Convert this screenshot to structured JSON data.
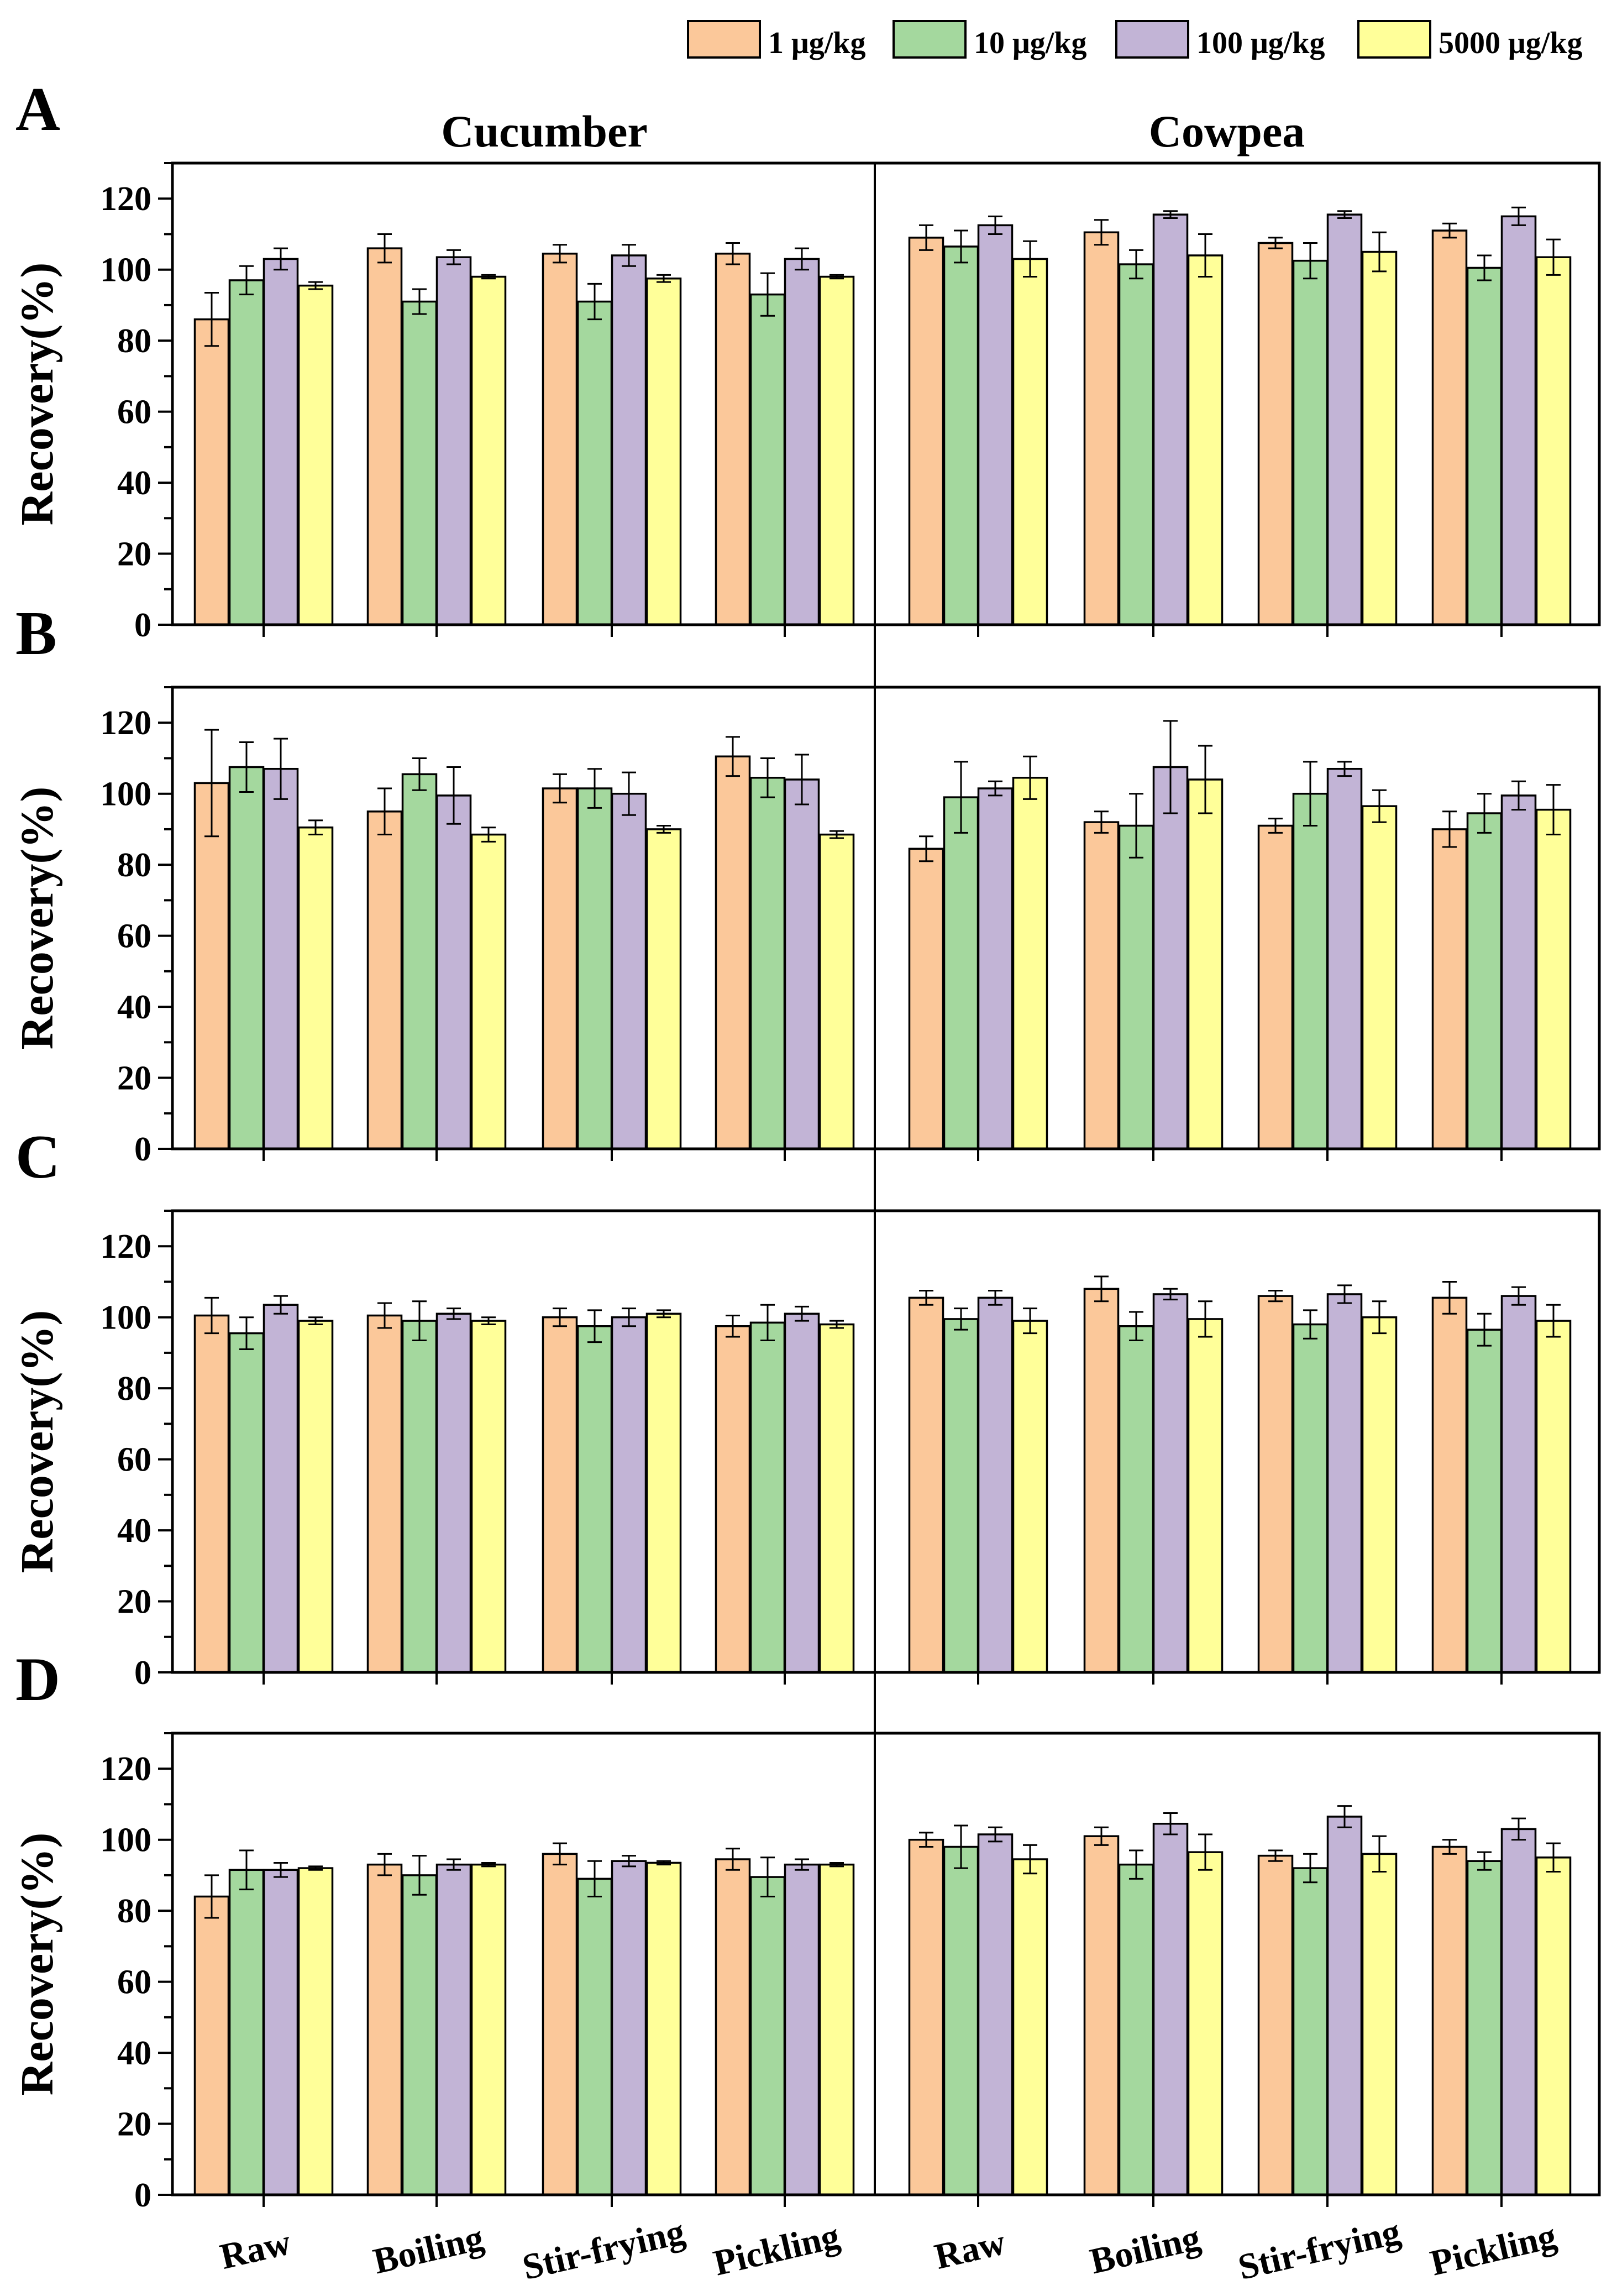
{
  "legend": [
    {
      "label": "1 μg/kg",
      "color": "#FBC89A"
    },
    {
      "label": "10 μg/kg",
      "color": "#A4D89E"
    },
    {
      "label": "100 μg/kg",
      "color": "#C2B4D6"
    },
    {
      "label": "5000 μg/kg",
      "color": "#FFFF99"
    }
  ],
  "column_titles": [
    "Cucumber",
    "Cowpea"
  ],
  "ylabel": "Recovery(%)",
  "xtick_labels": [
    "Raw",
    "Boiling",
    "Stir-frying",
    "Pickling",
    "Raw",
    "Boiling",
    "Stir-frying",
    "Pickling"
  ],
  "yticks": [
    "0",
    "20",
    "40",
    "60",
    "80",
    "100",
    "120"
  ],
  "chart_data": [
    {
      "panel": "A",
      "type": "bar",
      "ylim": [
        0,
        130
      ],
      "categories": [
        "Raw",
        "Boiling",
        "Stir-frying",
        "Pickling",
        "Raw",
        "Boiling",
        "Stir-frying",
        "Pickling"
      ],
      "series": [
        {
          "name": "1 μg/kg",
          "values": [
            86,
            106,
            104.5,
            104.5,
            109,
            110.5,
            107.5,
            111
          ],
          "errors": [
            7.5,
            4,
            2.5,
            3,
            3.5,
            3.5,
            1.5,
            2
          ]
        },
        {
          "name": "10 μg/kg",
          "values": [
            97,
            91,
            91,
            93,
            106.5,
            101.5,
            102.5,
            100.5
          ],
          "errors": [
            4,
            3.5,
            5,
            6,
            4.5,
            4,
            5,
            3.5
          ]
        },
        {
          "name": "100 μg/kg",
          "values": [
            103,
            103.5,
            104,
            103,
            112.5,
            115.5,
            115.5,
            115
          ],
          "errors": [
            3,
            2,
            3,
            3,
            2.5,
            1,
            1,
            2.5
          ]
        },
        {
          "name": "5000 μg/kg",
          "values": [
            95.5,
            98,
            97.5,
            98,
            103,
            104,
            105,
            103.5
          ],
          "errors": [
            1,
            0.5,
            1,
            0.5,
            5,
            6,
            5.5,
            5
          ]
        }
      ]
    },
    {
      "panel": "B",
      "type": "bar",
      "ylim": [
        0,
        130
      ],
      "categories": [
        "Raw",
        "Boiling",
        "Stir-frying",
        "Pickling",
        "Raw",
        "Boiling",
        "Stir-frying",
        "Pickling"
      ],
      "series": [
        {
          "name": "1 μg/kg",
          "values": [
            103,
            95,
            101.5,
            110.5,
            84.5,
            92,
            91,
            90
          ],
          "errors": [
            15,
            6.5,
            4,
            5.5,
            3.5,
            3,
            2,
            5
          ]
        },
        {
          "name": "10 μg/kg",
          "values": [
            107.5,
            105.5,
            101.5,
            104.5,
            99,
            91,
            100,
            94.5
          ],
          "errors": [
            7,
            4.5,
            5.5,
            5.5,
            10,
            9,
            9,
            5.5
          ]
        },
        {
          "name": "100 μg/kg",
          "values": [
            107,
            99.5,
            100,
            104,
            101.5,
            107.5,
            107,
            99.5
          ],
          "errors": [
            8.5,
            8,
            6,
            7,
            2,
            13,
            2,
            4
          ]
        },
        {
          "name": "5000 μg/kg",
          "values": [
            90.5,
            88.5,
            90,
            88.5,
            104.5,
            104,
            96.5,
            95.5
          ],
          "errors": [
            2,
            2,
            1,
            1,
            6,
            9.5,
            4.5,
            7
          ]
        }
      ]
    },
    {
      "panel": "C",
      "type": "bar",
      "ylim": [
        0,
        130
      ],
      "categories": [
        "Raw",
        "Boiling",
        "Stir-frying",
        "Pickling",
        "Raw",
        "Boiling",
        "Stir-frying",
        "Pickling"
      ],
      "series": [
        {
          "name": "1 μg/kg",
          "values": [
            100.5,
            100.5,
            100,
            97.5,
            105.5,
            108,
            106,
            105.5
          ],
          "errors": [
            5,
            3.5,
            2.5,
            3,
            2,
            3.5,
            1.5,
            4.5
          ]
        },
        {
          "name": "10 μg/kg",
          "values": [
            95.5,
            99,
            97.5,
            98.5,
            99.5,
            97.5,
            98,
            96.5
          ],
          "errors": [
            4.5,
            5.5,
            4.5,
            5,
            3,
            4,
            4,
            4.5
          ]
        },
        {
          "name": "100 μg/kg",
          "values": [
            103.5,
            101,
            100,
            101,
            105.5,
            106.5,
            106.5,
            106
          ],
          "errors": [
            2.5,
            1.5,
            2.5,
            2,
            2,
            1.5,
            2.5,
            2.5
          ]
        },
        {
          "name": "5000 μg/kg",
          "values": [
            99,
            99,
            101,
            98,
            99,
            99.5,
            100,
            99
          ],
          "errors": [
            1,
            1,
            1,
            1,
            3.5,
            5,
            4.5,
            4.5
          ]
        }
      ]
    },
    {
      "panel": "D",
      "type": "bar",
      "ylim": [
        0,
        130
      ],
      "categories": [
        "Raw",
        "Boiling",
        "Stir-frying",
        "Pickling",
        "Raw",
        "Boiling",
        "Stir-frying",
        "Pickling"
      ],
      "series": [
        {
          "name": "1 μg/kg",
          "values": [
            84,
            93,
            96,
            94.5,
            100,
            101,
            95.5,
            98
          ],
          "errors": [
            6,
            3,
            3,
            3,
            2,
            2.5,
            1.5,
            2
          ]
        },
        {
          "name": "10 μg/kg",
          "values": [
            91.5,
            90,
            89,
            89.5,
            98,
            93,
            92,
            94
          ],
          "errors": [
            5.5,
            5.5,
            5,
            5.5,
            6,
            4,
            4,
            2.5
          ]
        },
        {
          "name": "100 μg/kg",
          "values": [
            91.5,
            93,
            94,
            93,
            101.5,
            104.5,
            106.5,
            103
          ],
          "errors": [
            2,
            1.5,
            1.5,
            1.5,
            2,
            3,
            3,
            3
          ]
        },
        {
          "name": "5000 μg/kg",
          "values": [
            92,
            93,
            93.5,
            93,
            94.5,
            96.5,
            96,
            95
          ],
          "errors": [
            0.5,
            0.5,
            0.5,
            0.5,
            4,
            5,
            5,
            4
          ]
        }
      ]
    }
  ]
}
